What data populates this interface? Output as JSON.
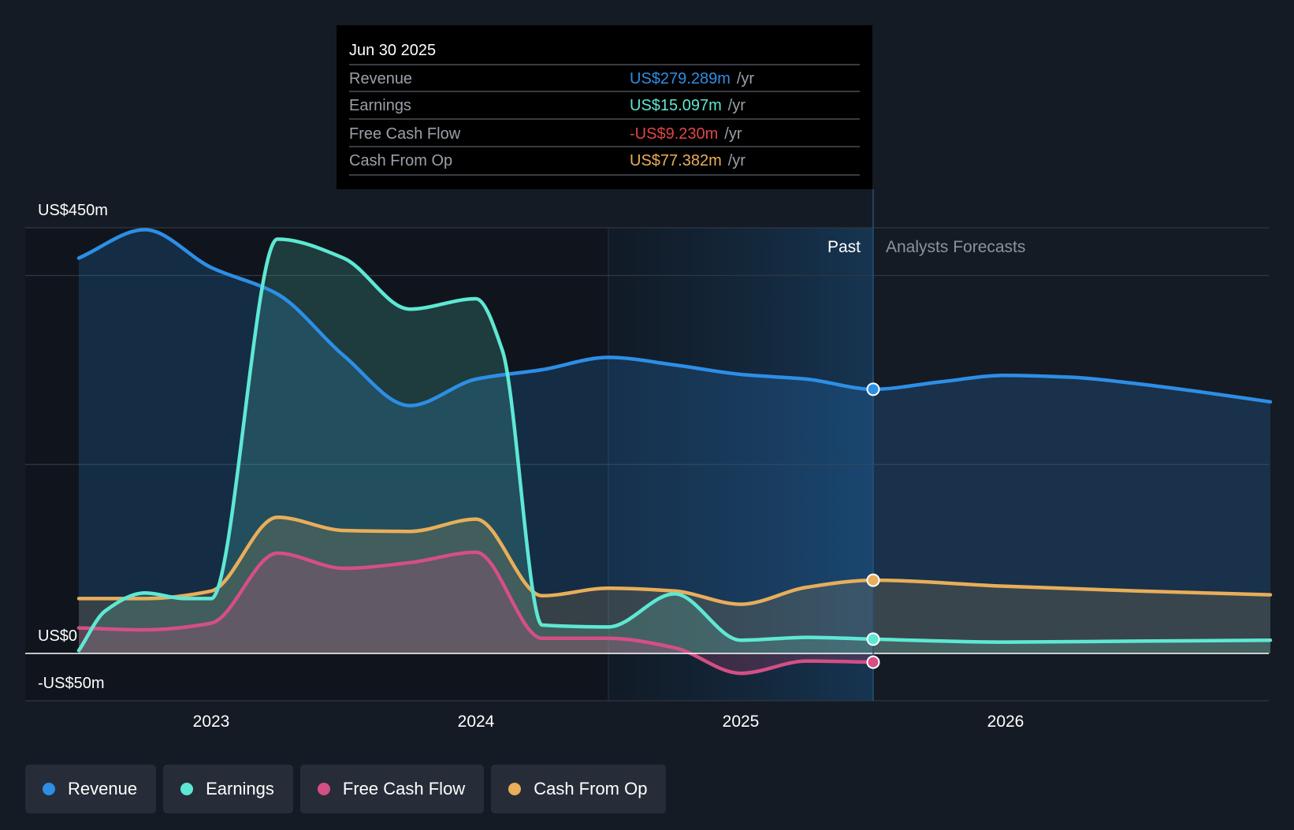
{
  "chart_data": {
    "type": "area",
    "title": "",
    "xlabel": "",
    "ylabel": "",
    "ylim": [
      -50,
      450
    ],
    "y_ticks": [
      {
        "value": 450,
        "label": "US$450m"
      },
      {
        "value": 0,
        "label": "US$0"
      },
      {
        "value": -50,
        "label": "-US$50m"
      }
    ],
    "x_ticks": [
      {
        "value": 2023.0,
        "label": "2023"
      },
      {
        "value": 2024.0,
        "label": "2024"
      },
      {
        "value": 2025.0,
        "label": "2025"
      },
      {
        "value": 2026.0,
        "label": "2026"
      }
    ],
    "xlim": [
      2022.31,
      2027.0
    ],
    "past_label": "Past",
    "forecast_label": "Analysts Forecasts",
    "highlight_start": 2024.5,
    "divider_x": 2025.5,
    "series": [
      {
        "name": "Revenue",
        "color": "#2d8ee6",
        "points": [
          [
            2022.5,
            418
          ],
          [
            2022.75,
            448
          ],
          [
            2023.0,
            408
          ],
          [
            2023.25,
            380
          ],
          [
            2023.5,
            315
          ],
          [
            2023.75,
            262
          ],
          [
            2024.0,
            290
          ],
          [
            2024.25,
            300
          ],
          [
            2024.5,
            313
          ],
          [
            2024.75,
            305
          ],
          [
            2025.0,
            295
          ],
          [
            2025.25,
            290
          ],
          [
            2025.5,
            279.289
          ],
          [
            2025.75,
            287
          ],
          [
            2026.0,
            294
          ],
          [
            2026.25,
            292
          ],
          [
            2026.5,
            285
          ],
          [
            2026.75,
            276
          ],
          [
            2027.0,
            266
          ]
        ]
      },
      {
        "name": "Earnings",
        "color": "#5ee8d3",
        "points": [
          [
            2022.5,
            3
          ],
          [
            2022.6,
            45
          ],
          [
            2022.75,
            64
          ],
          [
            2022.9,
            58
          ],
          [
            2023.0,
            58
          ],
          [
            2023.25,
            438
          ],
          [
            2023.5,
            418
          ],
          [
            2023.75,
            364
          ],
          [
            2024.0,
            375
          ],
          [
            2024.1,
            320
          ],
          [
            2024.25,
            30
          ],
          [
            2024.5,
            28
          ],
          [
            2024.75,
            63
          ],
          [
            2025.0,
            14
          ],
          [
            2025.25,
            17
          ],
          [
            2025.5,
            15.097
          ],
          [
            2026.0,
            12
          ],
          [
            2026.5,
            13
          ],
          [
            2027.0,
            14
          ]
        ]
      },
      {
        "name": "Free Cash Flow",
        "color": "#d44f85",
        "points": [
          [
            2022.5,
            27
          ],
          [
            2022.75,
            25
          ],
          [
            2023.0,
            32
          ],
          [
            2023.25,
            106
          ],
          [
            2023.5,
            90
          ],
          [
            2023.75,
            96
          ],
          [
            2024.0,
            107
          ],
          [
            2024.25,
            16
          ],
          [
            2024.5,
            16
          ],
          [
            2024.75,
            6
          ],
          [
            2025.0,
            -21
          ],
          [
            2025.25,
            -8
          ],
          [
            2025.5,
            -9.23
          ]
        ]
      },
      {
        "name": "Cash From Op",
        "color": "#e8ae5a",
        "points": [
          [
            2022.5,
            58
          ],
          [
            2022.75,
            58
          ],
          [
            2023.0,
            66
          ],
          [
            2023.25,
            144
          ],
          [
            2023.5,
            130
          ],
          [
            2023.75,
            129
          ],
          [
            2024.0,
            142
          ],
          [
            2024.25,
            61
          ],
          [
            2024.5,
            69
          ],
          [
            2024.75,
            66
          ],
          [
            2025.0,
            52
          ],
          [
            2025.25,
            70
          ],
          [
            2025.5,
            77.382
          ],
          [
            2026.0,
            71
          ],
          [
            2026.5,
            66
          ],
          [
            2027.0,
            62
          ]
        ]
      }
    ],
    "tooltip": {
      "date": "Jun 30 2025",
      "rows": [
        {
          "label": "Revenue",
          "value": "US$279.289m",
          "unit": "/yr",
          "color": "#2d8ee6"
        },
        {
          "label": "Earnings",
          "value": "US$15.097m",
          "unit": "/yr",
          "color": "#5ee8d3"
        },
        {
          "label": "Free Cash Flow",
          "value": "-US$9.230m",
          "unit": "/yr",
          "color": "#e04646"
        },
        {
          "label": "Cash From Op",
          "value": "US$77.382m",
          "unit": "/yr",
          "color": "#e8ae5a"
        }
      ]
    }
  },
  "legend": [
    {
      "label": "Revenue",
      "color": "#2d8ee6"
    },
    {
      "label": "Earnings",
      "color": "#5ee8d3"
    },
    {
      "label": "Free Cash Flow",
      "color": "#d44f85"
    },
    {
      "label": "Cash From Op",
      "color": "#e8ae5a"
    }
  ]
}
